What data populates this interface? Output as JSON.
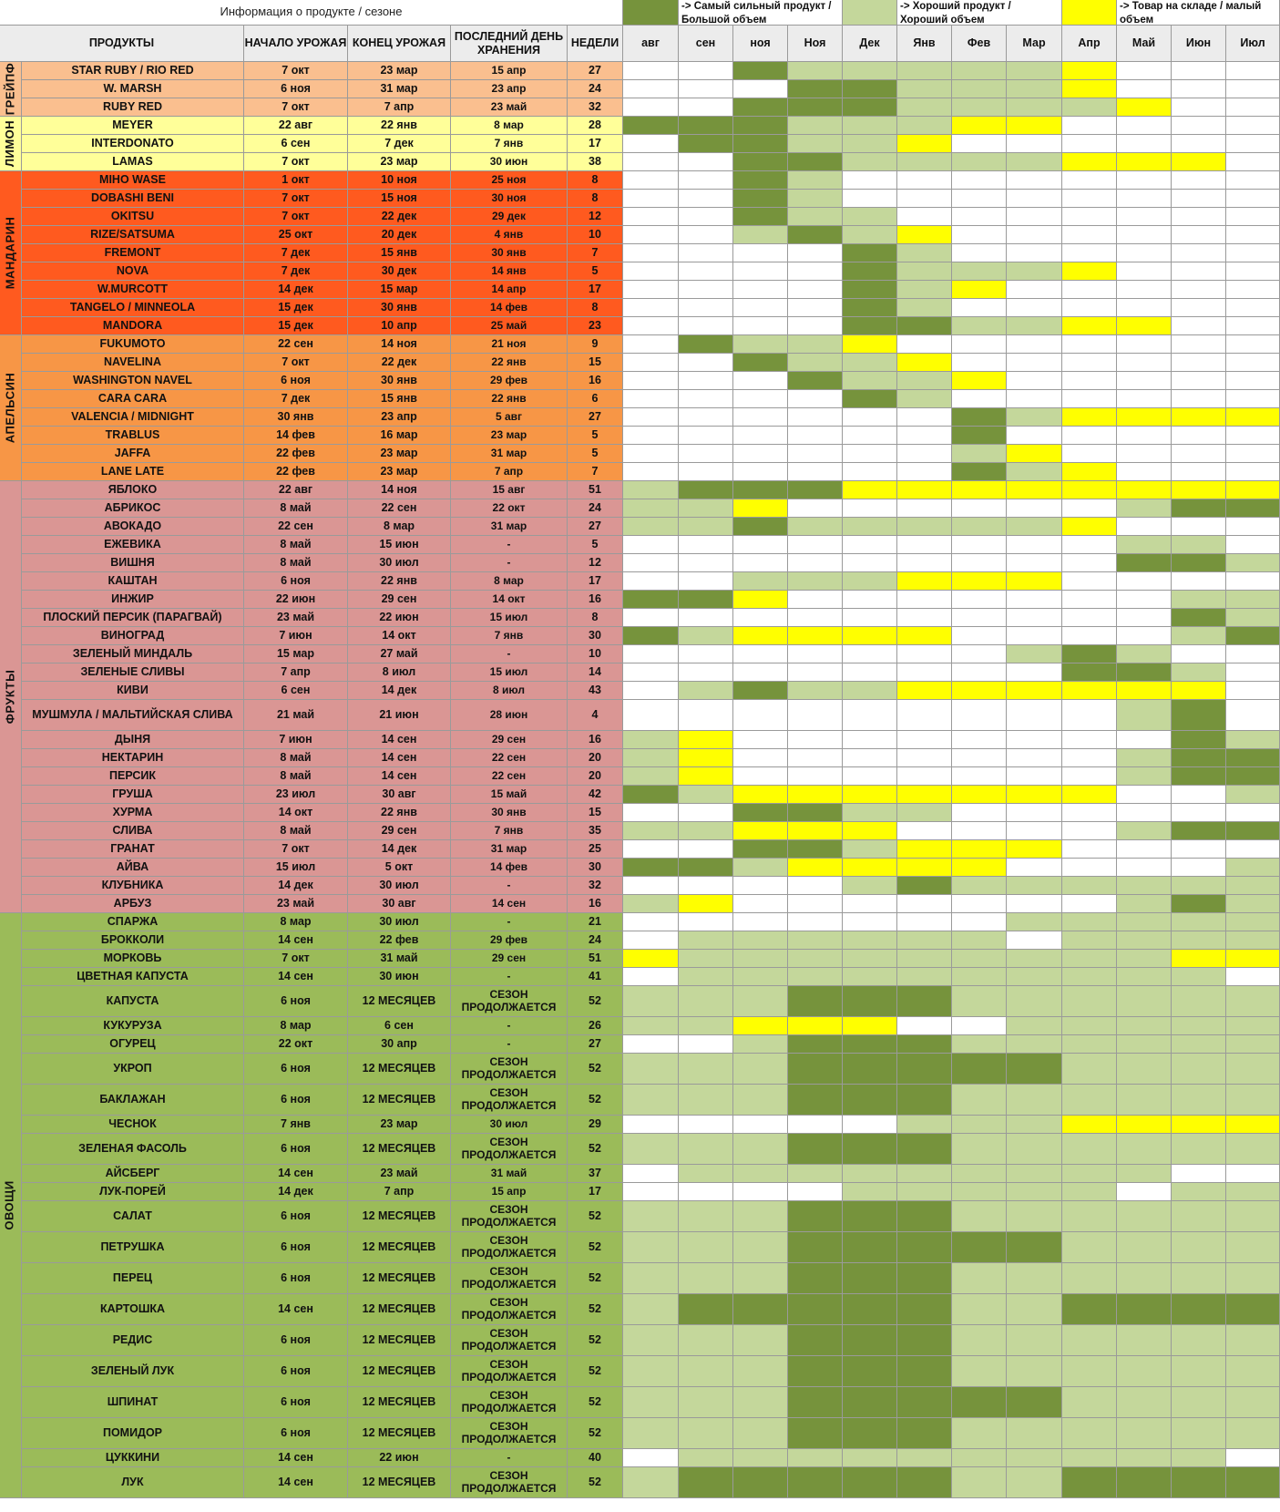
{
  "header": {
    "info_title": "Информация о продукте / сезоне",
    "legend": [
      {
        "color": "#76933c",
        "label": "-> Самый сильный продукт / Большой объем"
      },
      {
        "color": "#c4d79b",
        "label": "-> Хороший продукт / Хороший объем"
      },
      {
        "color": "#ffff00",
        "label": "-> Товар на складе / малый объем"
      }
    ],
    "columns": [
      "ПРОДУКТЫ",
      "НАЧАЛО УРОЖАЯ",
      "КОНЕЦ УРОЖАЯ",
      "ПОСЛЕДНИЙ ДЕНЬ ХРАНЕНИЯ",
      "НЕДЕЛИ"
    ],
    "months": [
      "авг",
      "сен",
      "ноя",
      "Ноя",
      "Дек",
      "Янв",
      "Фев",
      "Мар",
      "Апр",
      "Май",
      "Июн",
      "Июл"
    ]
  },
  "palette": {
    "D": "#76933c",
    "L": "#c4d79b",
    "Y": "#ffff00",
    "W": "#ffffff"
  },
  "groups": [
    {
      "name": "ГРЕЙПФ",
      "color": "#fabf8f",
      "rows": [
        {
          "product": "STAR RUBY / RIO RED",
          "start": "7 окт",
          "end": "23 мар",
          "last": "15 апр",
          "weeks": "27",
          "months": "WWDLLLLLYWWW"
        },
        {
          "product": "W. MARSH",
          "start": "6 ноя",
          "end": "31 мар",
          "last": "23 апр",
          "weeks": "24",
          "months": "WWWDDLLLYWWW"
        },
        {
          "product": "RUBY RED",
          "start": "7 окт",
          "end": "7 апр",
          "last": "23 май",
          "weeks": "32",
          "months": "WWDDDLLLLYWW"
        }
      ]
    },
    {
      "name": "ЛИМОН",
      "color": "#ffff99",
      "rows": [
        {
          "product": "MEYER",
          "start": "22 авг",
          "end": "22 янв",
          "last": "8 мар",
          "weeks": "28",
          "months": "DDDLLLYYWWWW"
        },
        {
          "product": "INTERDONATO",
          "start": "6 сен",
          "end": "7 дек",
          "last": "7 янв",
          "weeks": "17",
          "months": "WDDLLYWWWWWW"
        },
        {
          "product": "LAMAS",
          "start": "7 окт",
          "end": "23 мар",
          "last": "30 июн",
          "weeks": "38",
          "months": "WWDDLLLLYYYW"
        }
      ]
    },
    {
      "name": "МАНДАРИН",
      "color": "#ff5a1f",
      "rows": [
        {
          "product": "MIHO WASE",
          "start": "1 окт",
          "end": "10 ноя",
          "last": "25 ноя",
          "weeks": "8",
          "months": "WWDLWWWWWWWW"
        },
        {
          "product": "DOBASHI BENI",
          "start": "7 окт",
          "end": "15 ноя",
          "last": "30 ноя",
          "weeks": "8",
          "months": "WWDLWWWWWWWW"
        },
        {
          "product": "OKITSU",
          "start": "7 окт",
          "end": "22 дек",
          "last": "29 дек",
          "weeks": "12",
          "months": "WWDLLWWWWWWW"
        },
        {
          "product": "RIZE/SATSUMA",
          "start": "25 окт",
          "end": "20 дек",
          "last": "4 янв",
          "weeks": "10",
          "months": "WWLDLYWWWWWW"
        },
        {
          "product": "FREMONT",
          "start": "7 дек",
          "end": "15 янв",
          "last": "30 янв",
          "weeks": "7",
          "months": "WWWWDLWWWWWW"
        },
        {
          "product": "NOVA",
          "start": "7 дек",
          "end": "30 дек",
          "last": "14 янв",
          "weeks": "5",
          "months": "WWWWDLLLYWWW"
        },
        {
          "product": "W.MURCOTT",
          "start": "14 дек",
          "end": "15 мар",
          "last": "14 апр",
          "weeks": "17",
          "months": "WWWWDLYWWWWW"
        },
        {
          "product": "TANGELO / MINNEOLA",
          "start": "15 дек",
          "end": "30 янв",
          "last": "14 фев",
          "weeks": "8",
          "months": "WWWWDLWWWWWW"
        },
        {
          "product": "MANDORA",
          "start": "15 дек",
          "end": "10 апр",
          "last": "25 май",
          "weeks": "23",
          "months": "WWWWDDLLYYWW"
        }
      ]
    },
    {
      "name": "АПЕЛЬСИН",
      "color": "#f79646",
      "rows": [
        {
          "product": "FUKUMOTO",
          "start": "22 сен",
          "end": "14 ноя",
          "last": "21 ноя",
          "weeks": "9",
          "months": "WDLLYWWWWWWW"
        },
        {
          "product": "NAVELINA",
          "start": "7 окт",
          "end": "22 дек",
          "last": "22 янв",
          "weeks": "15",
          "months": "WWDLLYWWWWWW"
        },
        {
          "product": "WASHINGTON NAVEL",
          "start": "6 ноя",
          "end": "30 янв",
          "last": "29 фев",
          "weeks": "16",
          "months": "WWWDLLYWWWWW"
        },
        {
          "product": "CARA CARA",
          "start": "7 дек",
          "end": "15 янв",
          "last": "22 янв",
          "weeks": "6",
          "months": "WWWWDLWWWWWW"
        },
        {
          "product": "VALENCIA / MIDNIGHT",
          "start": "30 янв",
          "end": "23 апр",
          "last": "5 авг",
          "weeks": "27",
          "months": "WWWWWWDLYYYY"
        },
        {
          "product": "TRABLUS",
          "start": "14 фев",
          "end": "16 мар",
          "last": "23 мар",
          "weeks": "5",
          "months": "WWWWWWDWWWWW"
        },
        {
          "product": "JAFFA",
          "start": "22 фев",
          "end": "23 мар",
          "last": "31 мар",
          "weeks": "5",
          "months": "WWWWWWLYWWWW"
        },
        {
          "product": "LANE LATE",
          "start": "22 фев",
          "end": "23 мар",
          "last": "7 апр",
          "weeks": "7",
          "months": "WWWWWWDLYWWW"
        }
      ]
    },
    {
      "name": "ФРУКТЫ",
      "color": "#da9694",
      "rows": [
        {
          "product": "ЯБЛОКО",
          "start": "22 авг",
          "end": "14 ноя",
          "last": "15 авг",
          "weeks": "51",
          "months": "LDDDYYYYYYYY"
        },
        {
          "product": "АБРИКОС",
          "start": "8 май",
          "end": "22 сен",
          "last": "22 окт",
          "weeks": "24",
          "months": "LLYWWWWWWLDD"
        },
        {
          "product": "АВОКАДО",
          "start": "22 сен",
          "end": "8 мар",
          "last": "31 мар",
          "weeks": "27",
          "months": "LLDLLLLLYWWW"
        },
        {
          "product": "ЕЖЕВИКА",
          "start": "8 май",
          "end": "15 июн",
          "last": "-",
          "weeks": "5",
          "months": "WWWWWWWWWLLW"
        },
        {
          "product": "ВИШНЯ",
          "start": "8 май",
          "end": "30 июл",
          "last": "-",
          "weeks": "12",
          "months": "WWWWWWWWWDDL"
        },
        {
          "product": "КАШТАН",
          "start": "6 ноя",
          "end": "22 янв",
          "last": "8 мар",
          "weeks": "17",
          "months": "WWLLLYYYWWWW"
        },
        {
          "product": "ИНЖИР",
          "start": "22 июн",
          "end": "29 сен",
          "last": "14 окт",
          "weeks": "16",
          "months": "DDYWWWWWWWLL"
        },
        {
          "product": "ПЛОСКИЙ ПЕРСИК (ПАРАГВАЙ)",
          "start": "23 май",
          "end": "22 июн",
          "last": "15 июл",
          "weeks": "8",
          "months": "WWWWWWWWWWDL"
        },
        {
          "product": "ВИНОГРАД",
          "start": "7 июн",
          "end": "14 окт",
          "last": "7 янв",
          "weeks": "30",
          "months": "DLYYYYWWWWLD"
        },
        {
          "product": "ЗЕЛЕНЫЙ МИНДАЛЬ",
          "start": "15 мар",
          "end": "27 май",
          "last": "-",
          "weeks": "10",
          "months": "WWWWWWWLDLWW"
        },
        {
          "product": "ЗЕЛЕНЫЕ СЛИВЫ",
          "start": "7 апр",
          "end": "8 июл",
          "last": "15 июл",
          "weeks": "14",
          "months": "WWWWWWWWDDLW"
        },
        {
          "product": "КИВИ",
          "start": "6 сен",
          "end": "14 дек",
          "last": "8 июл",
          "weeks": "43",
          "months": "WLDLLYYYYYYW"
        },
        {
          "product": "МУШМУЛА / МАЛЬТИЙСКАЯ СЛИВА",
          "start": "21 май",
          "end": "21 июн",
          "last": "28 июн",
          "weeks": "4",
          "tall": true,
          "months": "WWWWWWWWWLDW"
        },
        {
          "product": "ДЫНЯ",
          "start": "7 июн",
          "end": "14 сен",
          "last": "29 сен",
          "weeks": "16",
          "months": "LYWWWWWWWWDL"
        },
        {
          "product": "НЕКТАРИН",
          "start": "8 май",
          "end": "14 сен",
          "last": "22 сен",
          "weeks": "20",
          "months": "LYWWWWWWWLDD"
        },
        {
          "product": "ПЕРСИК",
          "start": "8 май",
          "end": "14 сен",
          "last": "22 сен",
          "weeks": "20",
          "months": "LYWWWWWWWLDD"
        },
        {
          "product": "ГРУША",
          "start": "23 июл",
          "end": "30 авг",
          "last": "15 май",
          "weeks": "42",
          "months": "DLYYYYYYYWWL"
        },
        {
          "product": "ХУРМА",
          "start": "14 окт",
          "end": "22 янв",
          "last": "30 янв",
          "weeks": "15",
          "months": "WWDDLLWWWWWW"
        },
        {
          "product": "СЛИВА",
          "start": "8 май",
          "end": "29 сен",
          "last": "7 янв",
          "weeks": "35",
          "months": "LLYYYWWWWLDD"
        },
        {
          "product": "ГРАНАТ",
          "start": "7 окт",
          "end": "14 дек",
          "last": "31 мар",
          "weeks": "25",
          "months": "WWDDLYYYWWWW"
        },
        {
          "product": "АЙВА",
          "start": "15 июл",
          "end": "5 окт",
          "last": "14 фев",
          "weeks": "30",
          "months": "DDLYYYYWWWWL"
        },
        {
          "product": "КЛУБНИКА",
          "start": "14 дек",
          "end": "30 июл",
          "last": "-",
          "weeks": "32",
          "months": "WWWWLDLLLLLL"
        },
        {
          "product": "АРБУЗ",
          "start": "23 май",
          "end": "30 авг",
          "last": "14 сен",
          "weeks": "16",
          "months": "LYWWWWWWWLDL"
        }
      ]
    },
    {
      "name": "ОВОЩИ",
      "color": "#9bbb59",
      "rows": [
        {
          "product": "СПАРЖА",
          "start": "8 мар",
          "end": "30 июл",
          "last": "-",
          "weeks": "21",
          "months": "WWWWWWWLLLLL"
        },
        {
          "product": "БРОККОЛИ",
          "start": "14 сен",
          "end": "22 фев",
          "last": "29 фев",
          "weeks": "24",
          "months": "WLLLLLLWLLLL"
        },
        {
          "product": "МОРКОВЬ",
          "start": "7 окт",
          "end": "31 май",
          "last": "29 сен",
          "weeks": "51",
          "months": "YLLLLLLLLLYY"
        },
        {
          "product": "ЦВЕТНАЯ КАПУСТА",
          "start": "14 сен",
          "end": "30 июн",
          "last": "-",
          "weeks": "41",
          "months": "WLLLLLLLLLLW"
        },
        {
          "product": "КАПУСТА",
          "start": "6 ноя",
          "end": "12 МЕСЯЦЕВ",
          "last": "СЕЗОН ПРОДОЛЖАЕТСЯ",
          "weeks": "52",
          "tall": true,
          "months": "LLLDDDLLLLLL"
        },
        {
          "product": "КУКУРУЗА",
          "start": "8 мар",
          "end": "6 сен",
          "last": "-",
          "weeks": "26",
          "months": "LLYYYWWLLLLL"
        },
        {
          "product": "ОГУРЕЦ",
          "start": "22 окт",
          "end": "30 апр",
          "last": "-",
          "weeks": "27",
          "months": "WWLDDDLLLLLL"
        },
        {
          "product": "УКРОП",
          "start": "6 ноя",
          "end": "12 МЕСЯЦЕВ",
          "last": "СЕЗОН ПРОДОЛЖАЕТСЯ",
          "weeks": "52",
          "tall": true,
          "months": "LLLDDDDDLLLL"
        },
        {
          "product": "БАКЛАЖАН",
          "start": "6 ноя",
          "end": "12 МЕСЯЦЕВ",
          "last": "СЕЗОН ПРОДОЛЖАЕТСЯ",
          "weeks": "52",
          "tall": true,
          "months": "LLLDDDLLLLLL"
        },
        {
          "product": "ЧЕСНОК",
          "start": "7 янв",
          "end": "23 мар",
          "last": "30 июл",
          "weeks": "29",
          "months": "WWWWWLLLYYYY"
        },
        {
          "product": "ЗЕЛЕНАЯ ФАСОЛЬ",
          "start": "6 ноя",
          "end": "12 МЕСЯЦЕВ",
          "last": "СЕЗОН ПРОДОЛЖАЕТСЯ",
          "weeks": "52",
          "tall": true,
          "months": "LLLDDDLLLLLL"
        },
        {
          "product": "АЙСБЕРГ",
          "start": "14 сен",
          "end": "23 май",
          "last": "31 май",
          "weeks": "37",
          "months": "WLLLLLLLLLWW"
        },
        {
          "product": "ЛУК-ПОРЕЙ",
          "start": "14 дек",
          "end": "7 апр",
          "last": "15 апр",
          "weeks": "17",
          "months": "WWWWLLLLLWLL"
        },
        {
          "product": "САЛАТ",
          "start": "6 ноя",
          "end": "12 МЕСЯЦЕВ",
          "last": "СЕЗОН ПРОДОЛЖАЕТСЯ",
          "weeks": "52",
          "tall": true,
          "months": "LLLDDDLLLLLL"
        },
        {
          "product": "ПЕТРУШКА",
          "start": "6 ноя",
          "end": "12 МЕСЯЦЕВ",
          "last": "СЕЗОН ПРОДОЛЖАЕТСЯ",
          "weeks": "52",
          "tall": true,
          "months": "LLLDDDDDLLLL"
        },
        {
          "product": "ПЕРЕЦ",
          "start": "6 ноя",
          "end": "12 МЕСЯЦЕВ",
          "last": "СЕЗОН ПРОДОЛЖАЕТСЯ",
          "weeks": "52",
          "tall": true,
          "months": "LLLDDDLLLLLL"
        },
        {
          "product": "КАРТОШКА",
          "start": "14 сен",
          "end": "12 МЕСЯЦЕВ",
          "last": "СЕЗОН ПРОДОЛЖАЕТСЯ",
          "weeks": "52",
          "tall": true,
          "months": "LDDDDDLLDDDD"
        },
        {
          "product": "РЕДИС",
          "start": "6 ноя",
          "end": "12 МЕСЯЦЕВ",
          "last": "СЕЗОН ПРОДОЛЖАЕТСЯ",
          "weeks": "52",
          "tall": true,
          "months": "LLLDDDLLLLLL"
        },
        {
          "product": "ЗЕЛЕНЫЙ ЛУК",
          "start": "6 ноя",
          "end": "12 МЕСЯЦЕВ",
          "last": "СЕЗОН ПРОДОЛЖАЕТСЯ",
          "weeks": "52",
          "tall": true,
          "months": "LLLDDDLLLLLL"
        },
        {
          "product": "ШПИНАТ",
          "start": "6 ноя",
          "end": "12 МЕСЯЦЕВ",
          "last": "СЕЗОН ПРОДОЛЖАЕТСЯ",
          "weeks": "52",
          "tall": true,
          "months": "LLLDDDDDLLLL"
        },
        {
          "product": "ПОМИДОР",
          "start": "6 ноя",
          "end": "12 МЕСЯЦЕВ",
          "last": "СЕЗОН ПРОДОЛЖАЕТСЯ",
          "weeks": "52",
          "tall": true,
          "months": "LLLDDDLLLLLL"
        },
        {
          "product": "ЦУККИНИ",
          "start": "14 сен",
          "end": "22 июн",
          "last": "-",
          "weeks": "40",
          "months": "WLLLLLLLLLLW"
        },
        {
          "product": "ЛУК",
          "start": "14 сен",
          "end": "12 МЕСЯЦЕВ",
          "last": "СЕЗОН ПРОДОЛЖАЕТСЯ",
          "weeks": "52",
          "tall": true,
          "months": "LDDDDDLLDDDD"
        }
      ]
    }
  ]
}
